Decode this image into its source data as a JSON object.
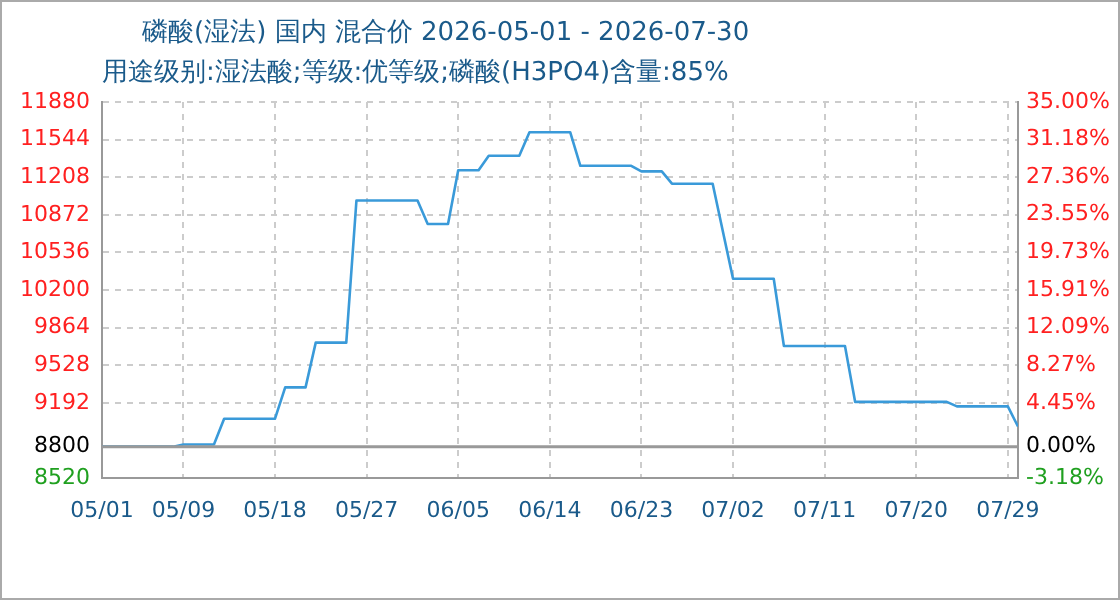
{
  "chart_data": {
    "type": "line",
    "title": "磷酸(湿法) 国内 混合价 2026-05-01 - 2026-07-30",
    "subtitle": "用途级别:湿法酸;等级:优等级;磷酸(H3PO4)含量:85%",
    "x": [
      "2026-05-01",
      "2026-05-08",
      "2026-05-09",
      "2026-05-12",
      "2026-05-13",
      "2026-05-18",
      "2026-05-19",
      "2026-05-21",
      "2026-05-22",
      "2026-05-25",
      "2026-05-26",
      "2026-06-01",
      "2026-06-02",
      "2026-06-04",
      "2026-06-05",
      "2026-06-07",
      "2026-06-08",
      "2026-06-11",
      "2026-06-12",
      "2026-06-16",
      "2026-06-17",
      "2026-06-22",
      "2026-06-23",
      "2026-06-25",
      "2026-06-26",
      "2026-06-30",
      "2026-07-02",
      "2026-07-06",
      "2026-07-07",
      "2026-07-13",
      "2026-07-14",
      "2026-07-23",
      "2026-07-24",
      "2026-07-29",
      "2026-07-30"
    ],
    "series": [
      {
        "color": "#3a9ad9",
        "values": [
          8800,
          8800,
          8820,
          8820,
          9050,
          9050,
          9330,
          9330,
          9730,
          9730,
          11000,
          11000,
          10790,
          10790,
          11270,
          11270,
          11400,
          11400,
          11610,
          11610,
          11310,
          11310,
          11260,
          11260,
          11150,
          11150,
          10300,
          10300,
          9700,
          9700,
          9200,
          9200,
          9160,
          9160,
          8980
        ]
      }
    ],
    "xlim": [
      "2026-05-01",
      "2026-07-30"
    ],
    "xticks": [
      {
        "value": "2026-05-01",
        "label": "05/01"
      },
      {
        "value": "2026-05-09",
        "label": "05/09"
      },
      {
        "value": "2026-05-18",
        "label": "05/18"
      },
      {
        "value": "2026-05-27",
        "label": "05/27"
      },
      {
        "value": "2026-06-05",
        "label": "06/05"
      },
      {
        "value": "2026-06-14",
        "label": "06/14"
      },
      {
        "value": "2026-06-23",
        "label": "06/23"
      },
      {
        "value": "2026-07-02",
        "label": "07/02"
      },
      {
        "value": "2026-07-11",
        "label": "07/11"
      },
      {
        "value": "2026-07-20",
        "label": "07/20"
      },
      {
        "value": "2026-07-29",
        "label": "07/29"
      }
    ],
    "ylim": [
      8520,
      11880
    ],
    "yticks": [
      8520,
      8800,
      9192,
      9528,
      9864,
      10200,
      10536,
      10872,
      11208,
      11544,
      11880
    ],
    "y2lim": [
      -3.18,
      35
    ],
    "y2ticks": [
      {
        "value": -3.18,
        "label": "-3.18%"
      },
      {
        "value": 0,
        "label": "0.00%"
      },
      {
        "value": 4.45,
        "label": "4.45%"
      },
      {
        "value": 8.27,
        "label": "8.27%"
      },
      {
        "value": 12.09,
        "label": "12.09%"
      },
      {
        "value": 15.91,
        "label": "15.91%"
      },
      {
        "value": 19.73,
        "label": "19.73%"
      },
      {
        "value": 23.55,
        "label": "23.55%"
      },
      {
        "value": 27.36,
        "label": "27.36%"
      },
      {
        "value": 31.18,
        "label": "31.18%"
      },
      {
        "value": 35,
        "label": "35.00%"
      }
    ],
    "ref_lines": [
      {
        "axis": "y",
        "value": 8800,
        "color": "#999999"
      }
    ],
    "grid": true,
    "legend": false,
    "marker": "none",
    "line_style": "solid"
  }
}
